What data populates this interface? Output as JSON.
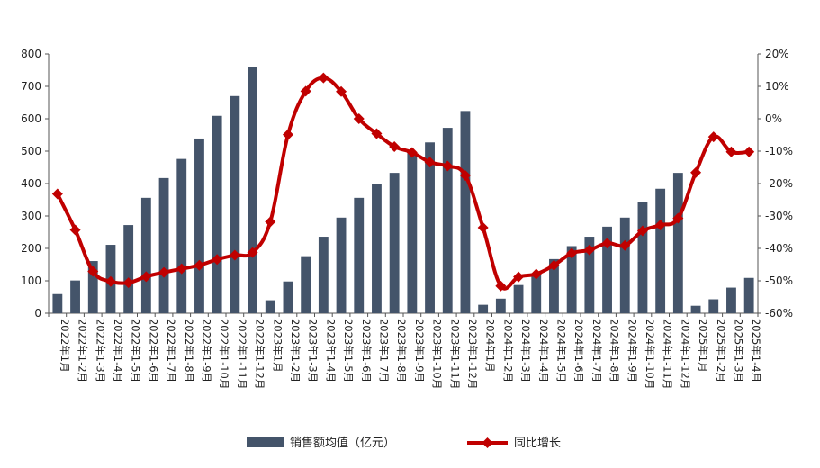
{
  "chart_data": {
    "type": "bar+line",
    "title": "",
    "categories": [
      "2022年1月",
      "2022年1-2月",
      "2022年1-3月",
      "2022年1-4月",
      "2022年1-5月",
      "2022年1-6月",
      "2022年1-7月",
      "2022年1-8月",
      "2022年1-9月",
      "2022年1-10月",
      "2022年1-11月",
      "2022年1-12月",
      "2023年1月",
      "2023年1-2月",
      "2023年1-3月",
      "2023年1-4月",
      "2023年1-5月",
      "2023年1-6月",
      "2023年1-7月",
      "2023年1-8月",
      "2023年1-9月",
      "2023年1-10月",
      "2023年1-11月",
      "2023年1-12月",
      "2024年1月",
      "2024年1-2月",
      "2024年1-3月",
      "2024年1-4月",
      "2024年1-5月",
      "2024年1-6月",
      "2024年1-7月",
      "2024年1-8月",
      "2024年1-9月",
      "2024年1-10月",
      "2024年1-11月",
      "2024年1-12月",
      "2025年1月",
      "2025年1-2月",
      "2025年1-3月",
      "2025年1-4月"
    ],
    "series": [
      {
        "name": "销售额均值（亿元）",
        "type": "bar",
        "axis": "left",
        "color": "#44546a",
        "values": [
          59,
          101,
          161,
          211,
          272,
          356,
          417,
          476,
          539,
          609,
          670,
          759,
          40,
          98,
          176,
          236,
          295,
          356,
          398,
          433,
          494,
          527,
          572,
          624,
          26,
          45,
          87,
          123,
          167,
          207,
          236,
          267,
          295,
          343,
          384,
          433,
          23,
          43,
          79,
          109
        ]
      },
      {
        "name": "同比增长",
        "type": "line",
        "axis": "right",
        "color": "#c00000",
        "values": [
          -23.2,
          -34.3,
          -47.1,
          -50.2,
          -50.6,
          -48.7,
          -47.4,
          -46.3,
          -45.2,
          -43.4,
          -42.1,
          -41.3,
          -31.8,
          -4.9,
          8.5,
          12.6,
          8.4,
          0.0,
          -4.6,
          -8.6,
          -10.4,
          -13.4,
          -14.6,
          -17.5,
          -33.6,
          -51.6,
          -48.8,
          -47.9,
          -45.2,
          -41.5,
          -40.5,
          -38.4,
          -39.1,
          -34.6,
          -32.8,
          -30.7,
          -16.6,
          -5.6,
          -10.2,
          -10.2
        ]
      }
    ],
    "y_left": {
      "min": 0,
      "max": 800,
      "step": 100,
      "ticks": [
        "0",
        "100",
        "200",
        "300",
        "400",
        "500",
        "600",
        "700",
        "800"
      ]
    },
    "y_right": {
      "min": -60,
      "max": 20,
      "step": 10,
      "ticks": [
        "-60%",
        "-50%",
        "-40%",
        "-30%",
        "-20%",
        "-10%",
        "0%",
        "10%",
        "20%"
      ]
    },
    "grid": false,
    "legend_position": "bottom",
    "legend": [
      {
        "label": "销售额均值（亿元）",
        "symbol": "bar"
      },
      {
        "label": "同比增长",
        "symbol": "line-diamond"
      }
    ]
  }
}
